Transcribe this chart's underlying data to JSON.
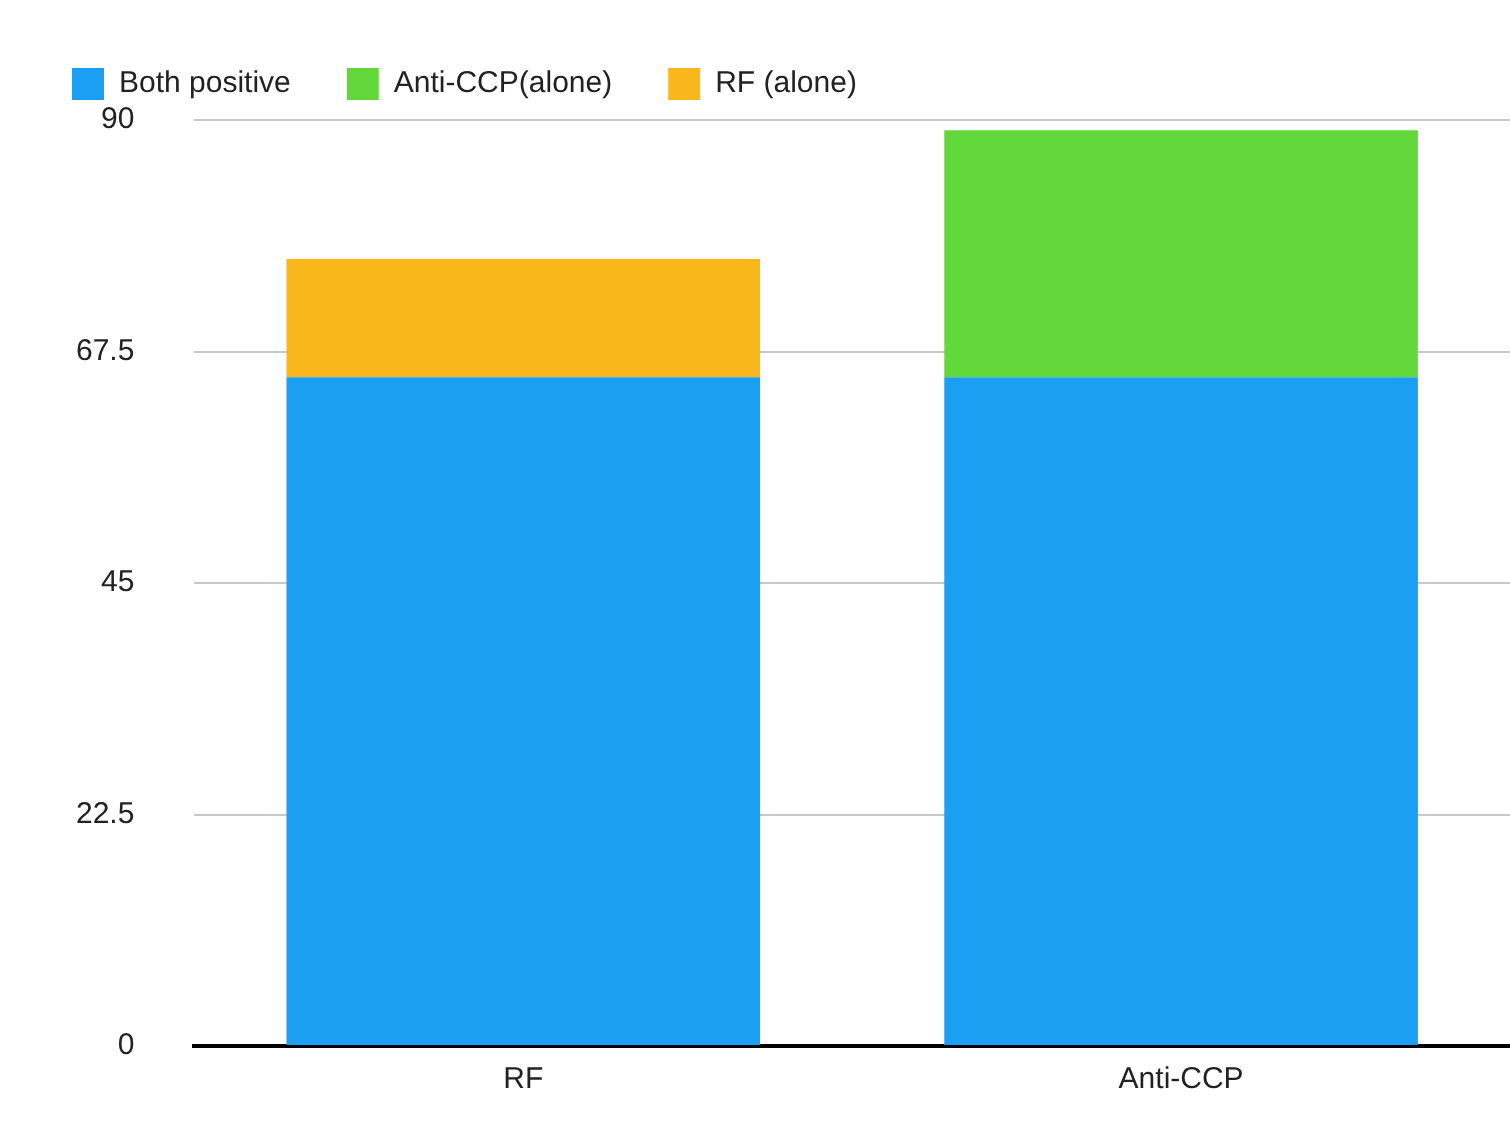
{
  "chart_data": {
    "type": "bar",
    "stacked": true,
    "categories": [
      "RF",
      "Anti-CCP"
    ],
    "series": [
      {
        "name": "Both positive",
        "color": "#1a9ff2",
        "values": [
          65,
          65
        ]
      },
      {
        "name": "Anti-CCP(alone)",
        "color": "#63d83b",
        "values": [
          null,
          24
        ]
      },
      {
        "name": "RF (alone)",
        "color": "#f8b81b",
        "values": [
          11.5,
          null
        ]
      }
    ],
    "ylim": [
      0,
      90
    ],
    "yticks": [
      0,
      22.5,
      45,
      67.5,
      90
    ],
    "grid": "y",
    "legend": "top"
  }
}
